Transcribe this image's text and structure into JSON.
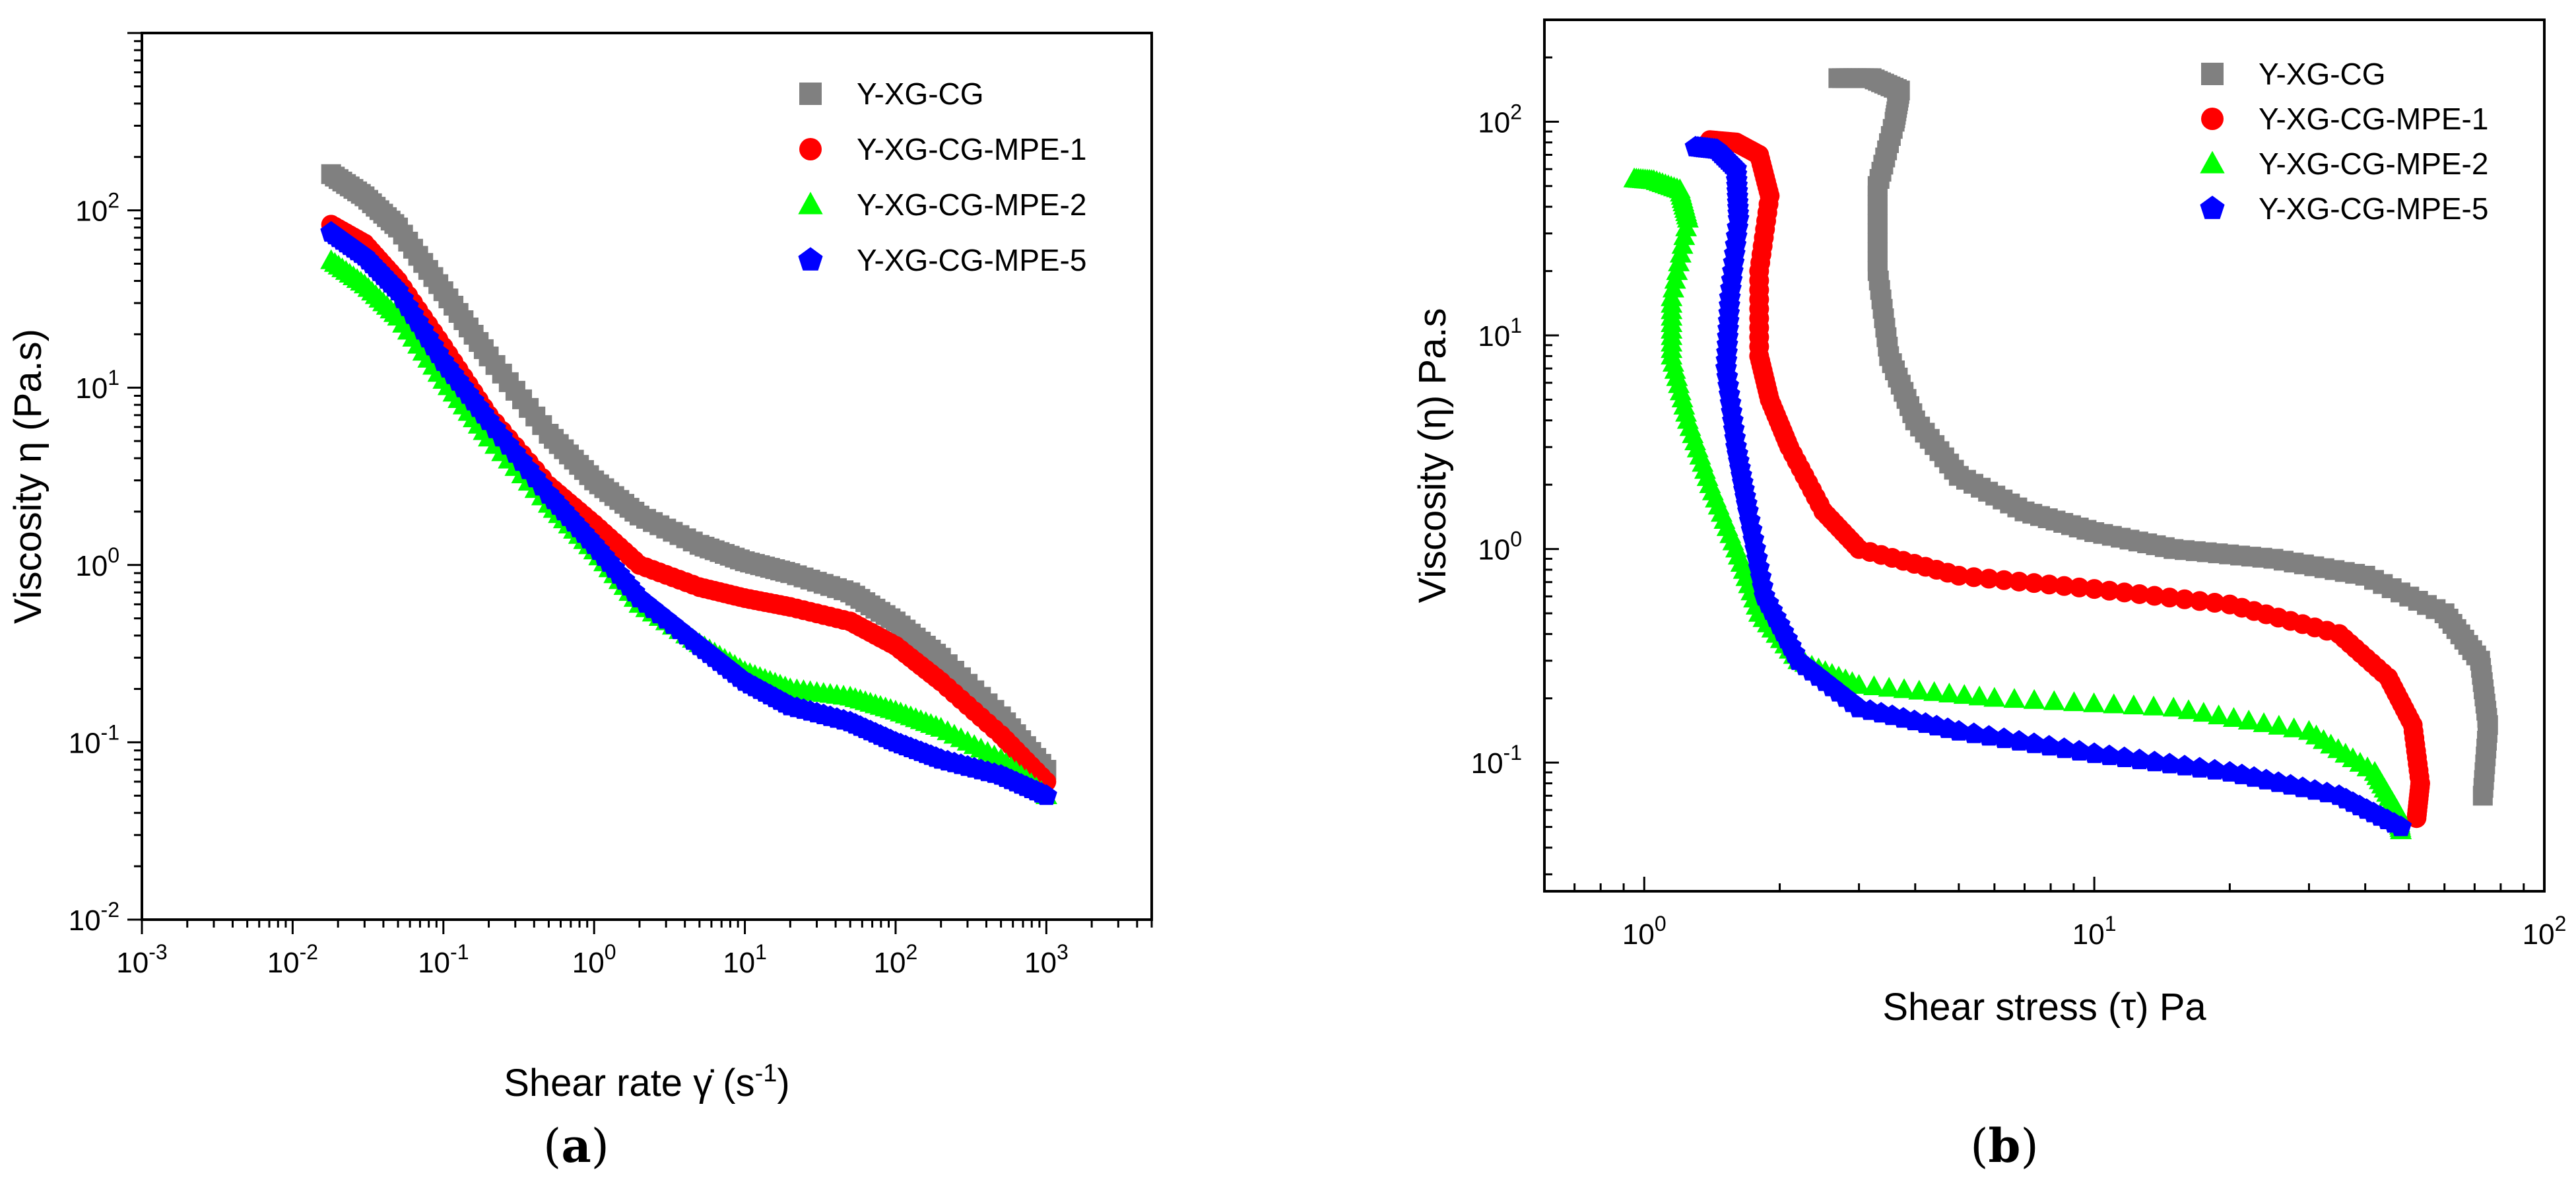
{
  "figure": {
    "caption_a": "(a)",
    "caption_b": "(b)",
    "caption_a_letter": "a",
    "caption_b_letter": "b"
  },
  "chart_data": [
    {
      "id": "a",
      "type": "scatter",
      "xscale": "log",
      "yscale": "log",
      "xlim": [
        0.001,
        5000
      ],
      "ylim": [
        0.01,
        1000
      ],
      "xticks": [
        {
          "value": 0.001,
          "base": "10",
          "exp": "-3"
        },
        {
          "value": 0.01,
          "base": "10",
          "exp": "-2"
        },
        {
          "value": 0.1,
          "base": "10",
          "exp": "-1"
        },
        {
          "value": 1,
          "base": "10",
          "exp": "0"
        },
        {
          "value": 10,
          "base": "10",
          "exp": "1"
        },
        {
          "value": 100,
          "base": "10",
          "exp": "2"
        },
        {
          "value": 1000,
          "base": "10",
          "exp": "3"
        }
      ],
      "yticks": [
        {
          "value": 0.01,
          "base": "10",
          "exp": "-2"
        },
        {
          "value": 0.1,
          "base": "10",
          "exp": "-1"
        },
        {
          "value": 1,
          "base": "10",
          "exp": "0"
        },
        {
          "value": 10,
          "base": "10",
          "exp": "1"
        },
        {
          "value": 100,
          "base": "10",
          "exp": "2"
        }
      ],
      "xlabel": "Shear rate γ̇ (s⁻¹)",
      "xlabel_main": "Shear rate ",
      "xlabel_symbol": "γ̇",
      "xlabel_unit_open": " (s",
      "xlabel_unit_exp": "-1",
      "xlabel_unit_close": ")",
      "ylabel": "Viscosity η (Pa.s)",
      "legend_position": "top-right",
      "series": [
        {
          "name": "Y-XG-CG",
          "color": "#808080",
          "marker": "square",
          "x": [
            0.018,
            0.03,
            0.05,
            0.1,
            0.2,
            0.5,
            1,
            2,
            5,
            10,
            20,
            50,
            100,
            200,
            500,
            1000
          ],
          "y": [
            160,
            120,
            80,
            35,
            15,
            5.5,
            3,
            1.9,
            1.3,
            1.05,
            0.9,
            0.7,
            0.48,
            0.3,
            0.14,
            0.07
          ]
        },
        {
          "name": "Y-XG-CG-MPE-1",
          "color": "#ff0000",
          "marker": "circle",
          "x": [
            0.018,
            0.03,
            0.05,
            0.1,
            0.2,
            0.5,
            1,
            2,
            5,
            10,
            20,
            50,
            100,
            200,
            500,
            1000
          ],
          "y": [
            83,
            65,
            40,
            17,
            7,
            2.8,
            1.7,
            1.0,
            0.75,
            0.65,
            0.58,
            0.48,
            0.35,
            0.22,
            0.11,
            0.06
          ]
        },
        {
          "name": "Y-XG-CG-MPE-2",
          "color": "#00ff00",
          "marker": "triangle",
          "x": [
            0.018,
            0.03,
            0.05,
            0.1,
            0.2,
            0.5,
            1,
            2,
            5,
            10,
            20,
            50,
            100,
            200,
            500,
            1000
          ],
          "y": [
            52,
            38,
            25,
            11,
            5.2,
            2.2,
            1.2,
            0.6,
            0.36,
            0.25,
            0.2,
            0.18,
            0.15,
            0.12,
            0.08,
            0.05
          ]
        },
        {
          "name": "Y-XG-CG-MPE-5",
          "color": "#0000ff",
          "marker": "pentagon",
          "x": [
            0.018,
            0.03,
            0.05,
            0.1,
            0.2,
            0.5,
            1,
            2,
            5,
            10,
            20,
            50,
            100,
            200,
            500,
            1000
          ],
          "y": [
            75,
            55,
            35,
            14,
            6.5,
            2.5,
            1.3,
            0.65,
            0.35,
            0.22,
            0.16,
            0.13,
            0.1,
            0.08,
            0.065,
            0.05
          ]
        }
      ]
    },
    {
      "id": "b",
      "type": "scatter",
      "xscale": "log",
      "yscale": "log",
      "xlim": [
        0.6,
        100
      ],
      "ylim": [
        0.025,
        300
      ],
      "xticks": [
        {
          "value": 1,
          "base": "10",
          "exp": "0"
        },
        {
          "value": 10,
          "base": "10",
          "exp": "1"
        },
        {
          "value": 100,
          "base": "10",
          "exp": "2"
        }
      ],
      "yticks": [
        {
          "value": 0.1,
          "base": "10",
          "exp": "-1"
        },
        {
          "value": 1,
          "base": "10",
          "exp": "0"
        },
        {
          "value": 10,
          "base": "10",
          "exp": "1"
        },
        {
          "value": 100,
          "base": "10",
          "exp": "2"
        }
      ],
      "xlabel": "Shear stress (τ) Pa",
      "ylabel": "Viscosity (η) Pa.s",
      "legend_position": "top-right",
      "series": [
        {
          "name": "Y-XG-CG",
          "color": "#808080",
          "marker": "square",
          "x": [
            2.7,
            3.2,
            3.7,
            3.6,
            3.3,
            3.3,
            3.5,
            4.0,
            5.0,
            7.0,
            10,
            15,
            25,
            40,
            60,
            72,
            75,
            73
          ],
          "y": [
            160,
            160,
            140,
            100,
            50,
            20,
            8,
            4,
            2.2,
            1.5,
            1.2,
            1.0,
            0.9,
            0.75,
            0.5,
            0.3,
            0.15,
            0.07
          ]
        },
        {
          "name": "Y-XG-CG-MPE-1",
          "color": "#ff0000",
          "marker": "circle",
          "x": [
            1.4,
            1.6,
            1.8,
            1.9,
            1.8,
            1.8,
            1.9,
            2.1,
            2.5,
            3,
            5,
            10,
            20,
            35,
            45,
            51,
            53,
            52
          ],
          "y": [
            82,
            80,
            70,
            45,
            20,
            8,
            5,
            3,
            1.5,
            1.0,
            0.75,
            0.65,
            0.55,
            0.4,
            0.25,
            0.15,
            0.08,
            0.055
          ]
        },
        {
          "name": "Y-XG-CG-MPE-2",
          "color": "#00ff00",
          "marker": "triangle",
          "x": [
            0.95,
            1.05,
            1.2,
            1.25,
            1.15,
            1.15,
            1.25,
            1.4,
            1.6,
            1.8,
            2.2,
            3,
            6,
            15,
            30,
            42,
            47,
            48
          ],
          "y": [
            54,
            53,
            48,
            35,
            15,
            8,
            4,
            2,
            1.0,
            0.5,
            0.3,
            0.23,
            0.2,
            0.18,
            0.14,
            0.09,
            0.06,
            0.048
          ]
        },
        {
          "name": "Y-XG-CG-MPE-5",
          "color": "#0000ff",
          "marker": "pentagon",
          "x": [
            1.3,
            1.45,
            1.6,
            1.62,
            1.55,
            1.52,
            1.6,
            1.7,
            1.85,
            2.2,
            3,
            5,
            10,
            20,
            35,
            48
          ],
          "y": [
            76,
            74,
            60,
            35,
            15,
            7,
            3,
            1.5,
            0.6,
            0.3,
            0.18,
            0.14,
            0.11,
            0.09,
            0.07,
            0.05
          ]
        }
      ]
    }
  ]
}
